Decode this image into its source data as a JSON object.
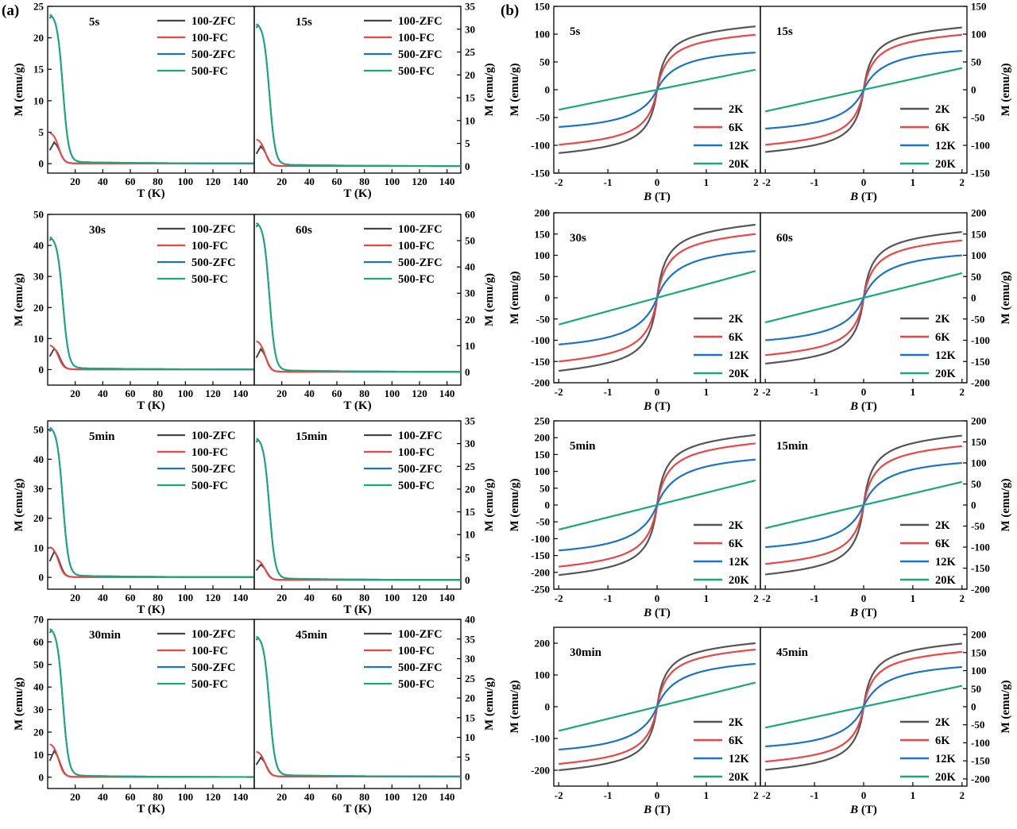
{
  "panel_labels": {
    "a": "(a)",
    "b": "(b)"
  },
  "colors": {
    "s100zfc": "#444444",
    "s100fc": "#ee4444",
    "s500zfc": "#1a73c8",
    "s500fc": "#19a87a",
    "k2": "#555555",
    "k6": "#ee4444",
    "k12": "#1a73c8",
    "k20": "#19a87a"
  },
  "chart_data": [
    {
      "type": "line",
      "group": "a",
      "xlabel": "T (K)",
      "ylabel": "M (emu/g)",
      "right_ylabel": "M (emu/g)",
      "xlim": [
        0,
        150
      ],
      "xticks": [
        20,
        40,
        60,
        80,
        100,
        120,
        140
      ],
      "series_names": [
        "100-ZFC",
        "100-FC",
        "500-ZFC",
        "500-FC"
      ],
      "panels": [
        {
          "label": "5s",
          "ylim": [
            -1.5,
            25
          ],
          "yticks": [
            0,
            5,
            10,
            15,
            20,
            25
          ],
          "series": [
            {
              "name": "100-ZFC",
              "Mpk": 3.5
            },
            {
              "name": "100-FC",
              "Mpk": 5.0
            },
            {
              "name": "500-ZFC",
              "Mpk": 23.6
            },
            {
              "name": "500-FC",
              "Mpk": 23.6
            }
          ]
        },
        {
          "label": "15s",
          "ylim": [
            -1.5,
            35
          ],
          "yticks": [
            0,
            5,
            10,
            15,
            20,
            25,
            30,
            35
          ],
          "series": [
            {
              "name": "100-ZFC",
              "Mpk": 4.5
            },
            {
              "name": "100-FC",
              "Mpk": 6.0
            },
            {
              "name": "500-ZFC",
              "Mpk": 31.0
            },
            {
              "name": "500-FC",
              "Mpk": 31.0
            }
          ]
        },
        {
          "label": "30s",
          "ylim": [
            -5,
            50
          ],
          "yticks": [
            0,
            10,
            20,
            30,
            40,
            50
          ],
          "series": [
            {
              "name": "100-ZFC",
              "Mpk": 7.0
            },
            {
              "name": "100-FC",
              "Mpk": 8.0
            },
            {
              "name": "500-ZFC",
              "Mpk": 42.5
            },
            {
              "name": "500-FC",
              "Mpk": 42.5
            }
          ]
        },
        {
          "label": "60s",
          "ylim": [
            -5,
            60
          ],
          "yticks": [
            0,
            10,
            20,
            30,
            40,
            50,
            60
          ],
          "series": [
            {
              "name": "100-ZFC",
              "Mpk": 9.0
            },
            {
              "name": "100-FC",
              "Mpk": 12.0
            },
            {
              "name": "500-ZFC",
              "Mpk": 56.5
            },
            {
              "name": "500-FC",
              "Mpk": 56.5
            }
          ]
        },
        {
          "label": "5min",
          "ylim": [
            -4,
            53
          ],
          "yticks": [
            0,
            10,
            20,
            30,
            40,
            50
          ],
          "series": [
            {
              "name": "100-ZFC",
              "Mpk": 9.0
            },
            {
              "name": "100-FC",
              "Mpk": 10.5
            },
            {
              "name": "500-ZFC",
              "Mpk": 50.5
            },
            {
              "name": "500-FC",
              "Mpk": 50.5
            }
          ]
        },
        {
          "label": "15min",
          "ylim": [
            -2,
            35
          ],
          "yticks": [
            0,
            5,
            10,
            15,
            20,
            25,
            30,
            35
          ],
          "series": [
            {
              "name": "100-ZFC",
              "Mpk": 3.5
            },
            {
              "name": "100-FC",
              "Mpk": 4.5
            },
            {
              "name": "500-ZFC",
              "Mpk": 31.0
            },
            {
              "name": "500-FC",
              "Mpk": 31.0
            }
          ]
        },
        {
          "label": "30min",
          "ylim": [
            -5,
            70
          ],
          "yticks": [
            0,
            10,
            20,
            30,
            40,
            50,
            60,
            70
          ],
          "series": [
            {
              "name": "100-ZFC",
              "Mpk": 12.0
            },
            {
              "name": "100-FC",
              "Mpk": 15.0
            },
            {
              "name": "500-ZFC",
              "Mpk": 65.5
            },
            {
              "name": "500-FC",
              "Mpk": 65.5
            }
          ]
        },
        {
          "label": "45min",
          "ylim": [
            -3,
            40
          ],
          "yticks": [
            0,
            5,
            10,
            15,
            20,
            25,
            30,
            35,
            40
          ],
          "series": [
            {
              "name": "100-ZFC",
              "Mpk": 5.0
            },
            {
              "name": "100-FC",
              "Mpk": 6.5
            },
            {
              "name": "500-ZFC",
              "Mpk": 35.5
            },
            {
              "name": "500-FC",
              "Mpk": 35.5
            }
          ]
        }
      ]
    },
    {
      "type": "line",
      "group": "b",
      "xlabel_italic": "B",
      "xlabel_rest": " (T)",
      "ylabel": "M (emu/g)",
      "right_ylabel": "M (emu/g)",
      "xlim": [
        -2.1,
        2.1
      ],
      "xtick_labels": [
        "-2",
        "-1",
        "0",
        "1",
        "2"
      ],
      "series_names": [
        "2K",
        "6K",
        "12K",
        "20K"
      ],
      "panels": [
        {
          "label": "5s",
          "ylim": [
            -150,
            150
          ],
          "yticks": [
            -150,
            -100,
            -50,
            0,
            50,
            100,
            150
          ],
          "series": [
            {
              "name": "2K",
              "M_at_2T": 114
            },
            {
              "name": "6K",
              "M_at_2T": 99
            },
            {
              "name": "12K",
              "M_at_2T": 67
            },
            {
              "name": "20K",
              "M_at_2T": 36
            }
          ]
        },
        {
          "label": "15s",
          "ylim": [
            -150,
            150
          ],
          "yticks": [
            -150,
            -100,
            -50,
            0,
            50,
            100,
            150
          ],
          "series": [
            {
              "name": "2K",
              "M_at_2T": 112
            },
            {
              "name": "6K",
              "M_at_2T": 99
            },
            {
              "name": "12K",
              "M_at_2T": 70
            },
            {
              "name": "20K",
              "M_at_2T": 39
            }
          ]
        },
        {
          "label": "30s",
          "ylim": [
            -200,
            200
          ],
          "yticks": [
            -200,
            -150,
            -100,
            -50,
            0,
            50,
            100,
            150,
            200
          ],
          "series": [
            {
              "name": "2K",
              "M_at_2T": 172
            },
            {
              "name": "6K",
              "M_at_2T": 150
            },
            {
              "name": "12K",
              "M_at_2T": 110
            },
            {
              "name": "20K",
              "M_at_2T": 63
            }
          ]
        },
        {
          "label": "60s",
          "ylim": [
            -200,
            200
          ],
          "yticks": [
            -200,
            -150,
            -100,
            -50,
            0,
            50,
            100,
            150,
            200
          ],
          "series": [
            {
              "name": "2K",
              "M_at_2T": 155
            },
            {
              "name": "6K",
              "M_at_2T": 135
            },
            {
              "name": "12K",
              "M_at_2T": 100
            },
            {
              "name": "20K",
              "M_at_2T": 58
            }
          ]
        },
        {
          "label": "5min",
          "ylim": [
            -250,
            250
          ],
          "yticks": [
            -250,
            -200,
            -150,
            -100,
            -50,
            0,
            50,
            100,
            150,
            200,
            250
          ],
          "series": [
            {
              "name": "2K",
              "M_at_2T": 208
            },
            {
              "name": "6K",
              "M_at_2T": 183
            },
            {
              "name": "12K",
              "M_at_2T": 135
            },
            {
              "name": "20K",
              "M_at_2T": 73
            }
          ]
        },
        {
          "label": "15min",
          "ylim": [
            -200,
            200
          ],
          "yticks": [
            -200,
            -150,
            -100,
            -50,
            0,
            50,
            100,
            150,
            200
          ],
          "series": [
            {
              "name": "2K",
              "M_at_2T": 165
            },
            {
              "name": "6K",
              "M_at_2T": 140
            },
            {
              "name": "12K",
              "M_at_2T": 100
            },
            {
              "name": "20K",
              "M_at_2T": 55
            }
          ]
        },
        {
          "label": "30min",
          "ylim": [
            -250,
            250
          ],
          "yticks": [
            -200,
            -100,
            0,
            100,
            200
          ],
          "series": [
            {
              "name": "2K",
              "M_at_2T": 200
            },
            {
              "name": "6K",
              "M_at_2T": 180
            },
            {
              "name": "12K",
              "M_at_2T": 135
            },
            {
              "name": "20K",
              "M_at_2T": 76
            }
          ]
        },
        {
          "label": "45min",
          "ylim": [
            -220,
            220
          ],
          "yticks": [
            -200,
            -150,
            -100,
            -50,
            0,
            50,
            100,
            150,
            200
          ],
          "series": [
            {
              "name": "2K",
              "M_at_2T": 175
            },
            {
              "name": "6K",
              "M_at_2T": 152
            },
            {
              "name": "12K",
              "M_at_2T": 110
            },
            {
              "name": "20K",
              "M_at_2T": 58
            }
          ]
        }
      ]
    }
  ]
}
